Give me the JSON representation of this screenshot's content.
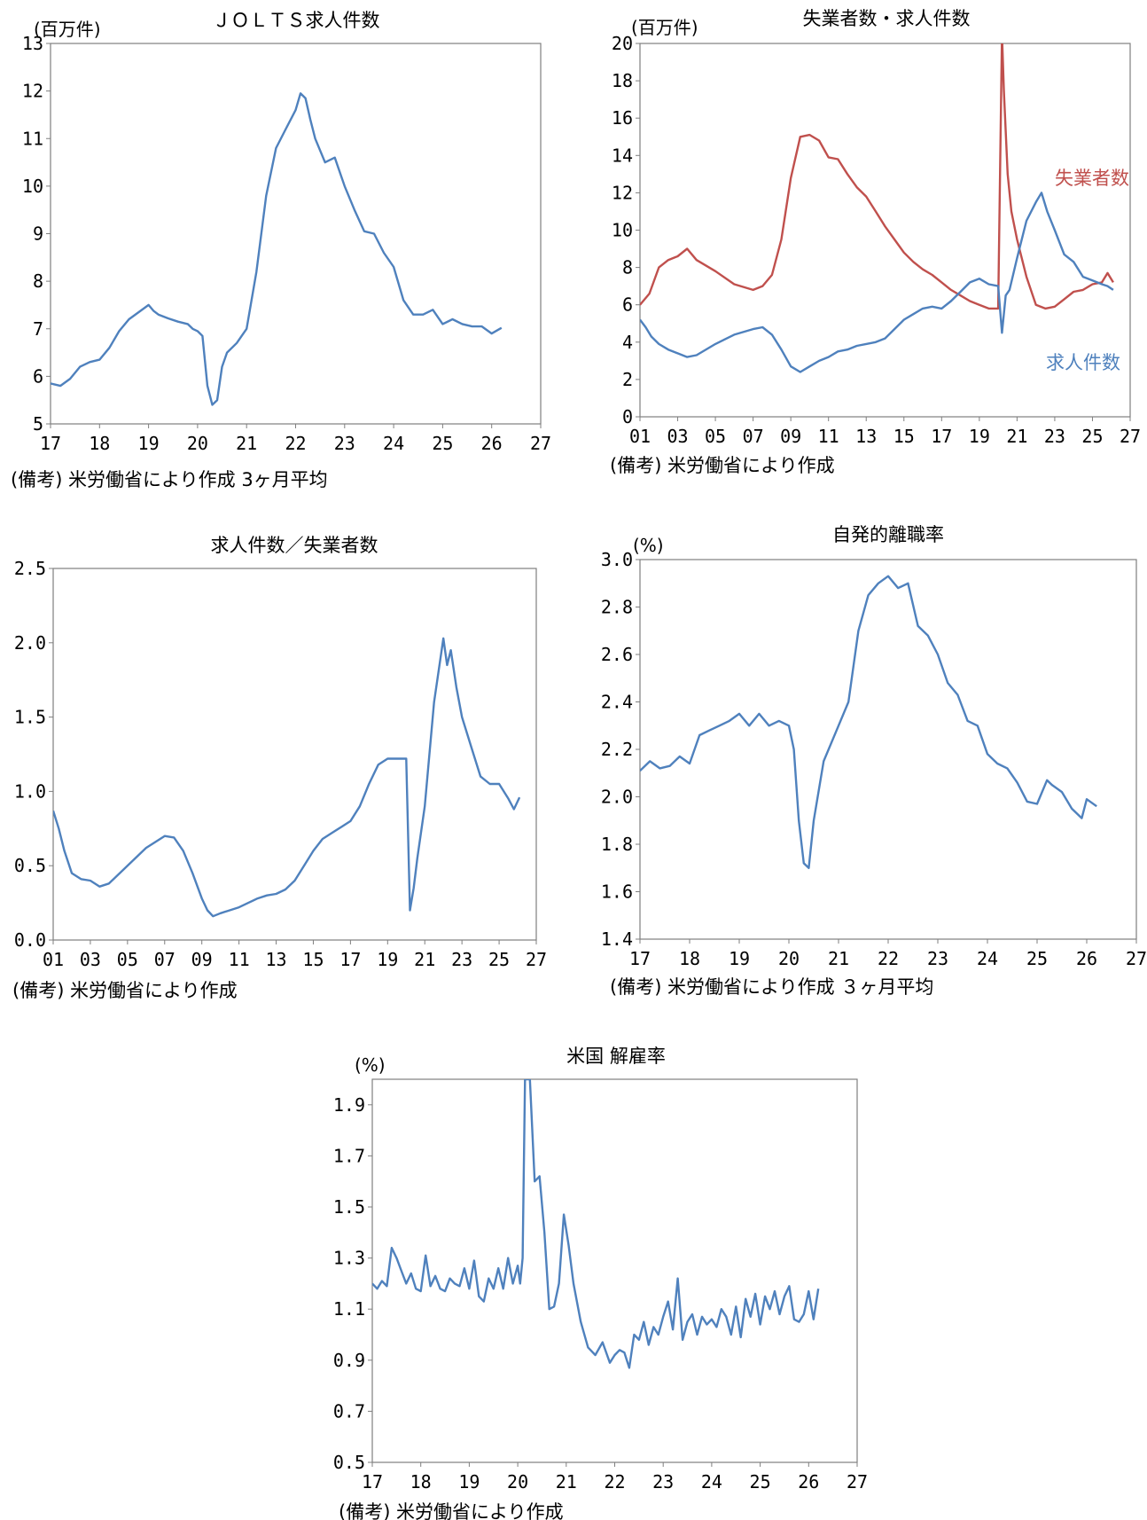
{
  "chart_data": [
    {
      "id": "jolts",
      "type": "line",
      "title": "ＪＯＬＴＳ求人件数",
      "unit": "(百万件)",
      "note": "(備考) 米労働省により作成 3ヶ月平均",
      "xticks": [
        "17",
        "18",
        "19",
        "20",
        "21",
        "22",
        "23",
        "24",
        "25",
        "26",
        "27"
      ],
      "xlim": [
        2017,
        2027
      ],
      "ylim": [
        5,
        13
      ],
      "yticks": [
        "5",
        "6",
        "7",
        "8",
        "9",
        "10",
        "11",
        "12",
        "13"
      ],
      "series": [
        {
          "color": "#4f81bd",
          "x": [
            2017.0,
            2017.2,
            2017.4,
            2017.6,
            2017.8,
            2018.0,
            2018.2,
            2018.4,
            2018.6,
            2018.8,
            2019.0,
            2019.1,
            2019.2,
            2019.4,
            2019.6,
            2019.8,
            2019.9,
            2020.0,
            2020.1,
            2020.2,
            2020.3,
            2020.4,
            2020.5,
            2020.6,
            2020.8,
            2021.0,
            2021.2,
            2021.4,
            2021.6,
            2021.8,
            2022.0,
            2022.1,
            2022.2,
            2022.3,
            2022.4,
            2022.6,
            2022.8,
            2023.0,
            2023.2,
            2023.4,
            2023.6,
            2023.8,
            2024.0,
            2024.2,
            2024.4,
            2024.6,
            2024.8,
            2025.0,
            2025.2,
            2025.4,
            2025.6,
            2025.8,
            2026.0,
            2026.2
          ],
          "y": [
            5.85,
            5.8,
            5.95,
            6.2,
            6.3,
            6.35,
            6.6,
            6.95,
            7.2,
            7.35,
            7.5,
            7.38,
            7.3,
            7.22,
            7.15,
            7.1,
            7.0,
            6.95,
            6.85,
            5.8,
            5.4,
            5.5,
            6.2,
            6.5,
            6.7,
            7.0,
            8.2,
            9.8,
            10.8,
            11.2,
            11.6,
            11.95,
            11.85,
            11.4,
            11.0,
            10.5,
            10.6,
            10.0,
            9.5,
            9.05,
            9.0,
            8.6,
            8.3,
            7.6,
            7.3,
            7.3,
            7.4,
            7.1,
            7.2,
            7.1,
            7.05,
            7.05,
            6.9,
            7.02
          ]
        }
      ]
    },
    {
      "id": "unemp",
      "type": "line",
      "title": "失業者数・求人件数",
      "unit": "(百万件)",
      "note": "(備考) 米労働省により作成",
      "xticks": [
        "01",
        "03",
        "05",
        "07",
        "09",
        "11",
        "13",
        "15",
        "17",
        "19",
        "21",
        "23",
        "25",
        "27"
      ],
      "xlim": [
        2001,
        2027
      ],
      "ylim": [
        0,
        20
      ],
      "yticks": [
        "0",
        "2",
        "4",
        "6",
        "8",
        "10",
        "12",
        "14",
        "16",
        "18",
        "20"
      ],
      "series": [
        {
          "name": "失業者数",
          "color": "#c0504d",
          "x": [
            2001.0,
            2001.5,
            2002.0,
            2002.5,
            2003.0,
            2003.5,
            2004.0,
            2005.0,
            2006.0,
            2007.0,
            2007.5,
            2008.0,
            2008.5,
            2009.0,
            2009.5,
            2010.0,
            2010.5,
            2011.0,
            2011.5,
            2012.0,
            2012.5,
            2013.0,
            2013.5,
            2014.0,
            2014.5,
            2015.0,
            2015.5,
            2016.0,
            2016.5,
            2017.0,
            2017.5,
            2018.0,
            2018.5,
            2019.0,
            2019.5,
            2020.0,
            2020.2,
            2020.3,
            2020.5,
            2020.7,
            2021.0,
            2021.5,
            2022.0,
            2022.5,
            2023.0,
            2023.5,
            2024.0,
            2024.5,
            2025.0,
            2025.5,
            2025.8,
            2026.1
          ],
          "y": [
            6.0,
            6.6,
            8.0,
            8.4,
            8.6,
            9.0,
            8.4,
            7.8,
            7.1,
            6.8,
            7.0,
            7.6,
            9.5,
            12.8,
            15.0,
            15.1,
            14.8,
            13.9,
            13.8,
            13.0,
            12.3,
            11.8,
            11.0,
            10.2,
            9.5,
            8.8,
            8.3,
            7.9,
            7.6,
            7.2,
            6.8,
            6.5,
            6.2,
            6.0,
            5.8,
            5.8,
            20.5,
            17.5,
            13.0,
            11.0,
            9.5,
            7.5,
            6.0,
            5.8,
            5.9,
            6.3,
            6.7,
            6.8,
            7.1,
            7.2,
            7.7,
            7.2
          ]
        },
        {
          "name": "求人件数",
          "color": "#4f81bd",
          "x": [
            2001.0,
            2001.3,
            2001.6,
            2002.0,
            2002.5,
            2003.0,
            2003.5,
            2004.0,
            2005.0,
            2006.0,
            2007.0,
            2007.5,
            2008.0,
            2008.5,
            2009.0,
            2009.5,
            2010.0,
            2010.5,
            2011.0,
            2011.5,
            2012.0,
            2012.5,
            2013.0,
            2013.5,
            2014.0,
            2014.5,
            2015.0,
            2015.5,
            2016.0,
            2016.5,
            2017.0,
            2017.5,
            2018.0,
            2018.5,
            2019.0,
            2019.5,
            2020.0,
            2020.2,
            2020.4,
            2020.6,
            2021.0,
            2021.5,
            2022.0,
            2022.3,
            2022.6,
            2023.0,
            2023.5,
            2024.0,
            2024.5,
            2025.0,
            2025.5,
            2025.8,
            2026.1
          ],
          "y": [
            5.2,
            4.8,
            4.3,
            3.9,
            3.6,
            3.4,
            3.2,
            3.3,
            3.9,
            4.4,
            4.7,
            4.8,
            4.4,
            3.6,
            2.7,
            2.4,
            2.7,
            3.0,
            3.2,
            3.5,
            3.6,
            3.8,
            3.9,
            4.0,
            4.2,
            4.7,
            5.2,
            5.5,
            5.8,
            5.9,
            5.8,
            6.2,
            6.7,
            7.2,
            7.4,
            7.1,
            7.0,
            4.5,
            6.5,
            6.8,
            8.5,
            10.5,
            11.5,
            12.0,
            11.0,
            10.0,
            8.7,
            8.3,
            7.5,
            7.3,
            7.1,
            7.0,
            6.8
          ]
        }
      ]
    },
    {
      "id": "ratio",
      "type": "line",
      "title": "求人件数／失業者数",
      "unit": "",
      "note": "(備考) 米労働省により作成",
      "xticks": [
        "01",
        "03",
        "05",
        "07",
        "09",
        "11",
        "13",
        "15",
        "17",
        "19",
        "21",
        "23",
        "25",
        "27"
      ],
      "xlim": [
        2001,
        2027
      ],
      "ylim": [
        0,
        2.5
      ],
      "yticks": [
        "0.0",
        "0.5",
        "1.0",
        "1.5",
        "2.0",
        "2.5"
      ],
      "series": [
        {
          "color": "#4f81bd",
          "x": [
            2001.0,
            2001.3,
            2001.6,
            2002.0,
            2002.5,
            2003.0,
            2003.5,
            2004.0,
            2005.0,
            2006.0,
            2007.0,
            2007.5,
            2008.0,
            2008.5,
            2009.0,
            2009.3,
            2009.6,
            2010.0,
            2010.5,
            2011.0,
            2011.5,
            2012.0,
            2012.5,
            2013.0,
            2013.5,
            2014.0,
            2014.5,
            2015.0,
            2015.5,
            2016.0,
            2016.5,
            2017.0,
            2017.5,
            2018.0,
            2018.5,
            2019.0,
            2019.5,
            2020.0,
            2020.2,
            2020.4,
            2020.6,
            2021.0,
            2021.5,
            2022.0,
            2022.2,
            2022.4,
            2022.7,
            2023.0,
            2023.5,
            2024.0,
            2024.5,
            2025.0,
            2025.5,
            2025.8,
            2026.1
          ],
          "y": [
            0.87,
            0.75,
            0.6,
            0.45,
            0.41,
            0.4,
            0.36,
            0.38,
            0.5,
            0.62,
            0.7,
            0.69,
            0.6,
            0.45,
            0.28,
            0.2,
            0.16,
            0.18,
            0.2,
            0.22,
            0.25,
            0.28,
            0.3,
            0.31,
            0.34,
            0.4,
            0.5,
            0.6,
            0.68,
            0.72,
            0.76,
            0.8,
            0.9,
            1.05,
            1.18,
            1.22,
            1.22,
            1.22,
            0.2,
            0.35,
            0.55,
            0.9,
            1.6,
            2.03,
            1.85,
            1.95,
            1.7,
            1.5,
            1.3,
            1.1,
            1.05,
            1.05,
            0.95,
            0.88,
            0.96
          ]
        }
      ]
    },
    {
      "id": "quits",
      "type": "line",
      "title": "自発的離職率",
      "unit": "(%)",
      "note": "(備考) 米労働省により作成 ３ヶ月平均",
      "xticks": [
        "17",
        "18",
        "19",
        "20",
        "21",
        "22",
        "23",
        "24",
        "25",
        "26",
        "27"
      ],
      "xlim": [
        2017,
        2027
      ],
      "ylim": [
        1.4,
        3.0
      ],
      "yticks": [
        "1.4",
        "1.6",
        "1.8",
        "2.0",
        "2.2",
        "2.4",
        "2.6",
        "2.8",
        "3.0"
      ],
      "series": [
        {
          "color": "#4f81bd",
          "x": [
            2017.0,
            2017.2,
            2017.4,
            2017.6,
            2017.8,
            2018.0,
            2018.2,
            2018.4,
            2018.6,
            2018.8,
            2019.0,
            2019.2,
            2019.4,
            2019.6,
            2019.8,
            2020.0,
            2020.1,
            2020.2,
            2020.3,
            2020.4,
            2020.5,
            2020.7,
            2021.0,
            2021.2,
            2021.4,
            2021.6,
            2021.8,
            2022.0,
            2022.2,
            2022.4,
            2022.6,
            2022.8,
            2023.0,
            2023.2,
            2023.4,
            2023.6,
            2023.8,
            2024.0,
            2024.2,
            2024.4,
            2024.6,
            2024.8,
            2025.0,
            2025.2,
            2025.3,
            2025.5,
            2025.7,
            2025.9,
            2026.0,
            2026.2
          ],
          "y": [
            2.11,
            2.15,
            2.12,
            2.13,
            2.17,
            2.14,
            2.26,
            2.28,
            2.3,
            2.32,
            2.35,
            2.3,
            2.35,
            2.3,
            2.32,
            2.3,
            2.2,
            1.9,
            1.72,
            1.7,
            1.9,
            2.15,
            2.3,
            2.4,
            2.7,
            2.85,
            2.9,
            2.93,
            2.88,
            2.9,
            2.72,
            2.68,
            2.6,
            2.48,
            2.43,
            2.32,
            2.3,
            2.18,
            2.14,
            2.12,
            2.06,
            1.98,
            1.97,
            2.07,
            2.05,
            2.02,
            1.95,
            1.91,
            1.99,
            1.96
          ]
        }
      ]
    },
    {
      "id": "layoffs",
      "type": "line",
      "title": "米国 解雇率",
      "unit": "(%)",
      "note": "(備考) 米労働省により作成",
      "xticks": [
        "17",
        "18",
        "19",
        "20",
        "21",
        "22",
        "23",
        "24",
        "25",
        "26",
        "27"
      ],
      "xlim": [
        2017,
        2027
      ],
      "ylim": [
        0.5,
        2.0
      ],
      "yticks": [
        "0.5",
        "0.7",
        "0.9",
        "1.1",
        "1.3",
        "1.5",
        "1.7",
        "1.9"
      ],
      "series": [
        {
          "color": "#4f81bd",
          "x": [
            2017.0,
            2017.1,
            2017.2,
            2017.3,
            2017.4,
            2017.5,
            2017.6,
            2017.7,
            2017.8,
            2017.9,
            2018.0,
            2018.1,
            2018.2,
            2018.3,
            2018.4,
            2018.5,
            2018.6,
            2018.7,
            2018.8,
            2018.9,
            2019.0,
            2019.1,
            2019.2,
            2019.3,
            2019.4,
            2019.5,
            2019.6,
            2019.7,
            2019.8,
            2019.9,
            2020.0,
            2020.05,
            2020.1,
            2020.15,
            2020.25,
            2020.35,
            2020.45,
            2020.55,
            2020.65,
            2020.75,
            2020.85,
            2020.95,
            2021.05,
            2021.15,
            2021.3,
            2021.45,
            2021.6,
            2021.75,
            2021.9,
            2022.0,
            2022.1,
            2022.2,
            2022.3,
            2022.4,
            2022.5,
            2022.6,
            2022.7,
            2022.8,
            2022.9,
            2023.0,
            2023.1,
            2023.2,
            2023.3,
            2023.4,
            2023.5,
            2023.6,
            2023.7,
            2023.8,
            2023.9,
            2024.0,
            2024.1,
            2024.2,
            2024.3,
            2024.4,
            2024.5,
            2024.6,
            2024.7,
            2024.8,
            2024.9,
            2025.0,
            2025.1,
            2025.2,
            2025.3,
            2025.4,
            2025.5,
            2025.6,
            2025.7,
            2025.8,
            2025.9,
            2026.0,
            2026.1,
            2026.2
          ],
          "y": [
            1.2,
            1.18,
            1.21,
            1.19,
            1.34,
            1.3,
            1.25,
            1.2,
            1.24,
            1.18,
            1.17,
            1.31,
            1.19,
            1.23,
            1.18,
            1.17,
            1.22,
            1.2,
            1.19,
            1.26,
            1.18,
            1.29,
            1.15,
            1.13,
            1.22,
            1.18,
            1.26,
            1.18,
            1.3,
            1.2,
            1.27,
            1.2,
            1.3,
            2.0,
            2.0,
            1.6,
            1.62,
            1.4,
            1.1,
            1.11,
            1.2,
            1.47,
            1.35,
            1.2,
            1.05,
            0.95,
            0.92,
            0.97,
            0.89,
            0.92,
            0.94,
            0.93,
            0.87,
            1.0,
            0.98,
            1.05,
            0.96,
            1.03,
            1.0,
            1.07,
            1.13,
            1.02,
            1.22,
            0.98,
            1.05,
            1.08,
            1.0,
            1.07,
            1.04,
            1.06,
            1.03,
            1.1,
            1.07,
            1.0,
            1.11,
            0.99,
            1.14,
            1.07,
            1.16,
            1.04,
            1.15,
            1.1,
            1.17,
            1.08,
            1.15,
            1.19,
            1.06,
            1.05,
            1.08,
            1.17,
            1.06,
            1.18
          ]
        }
      ]
    }
  ]
}
